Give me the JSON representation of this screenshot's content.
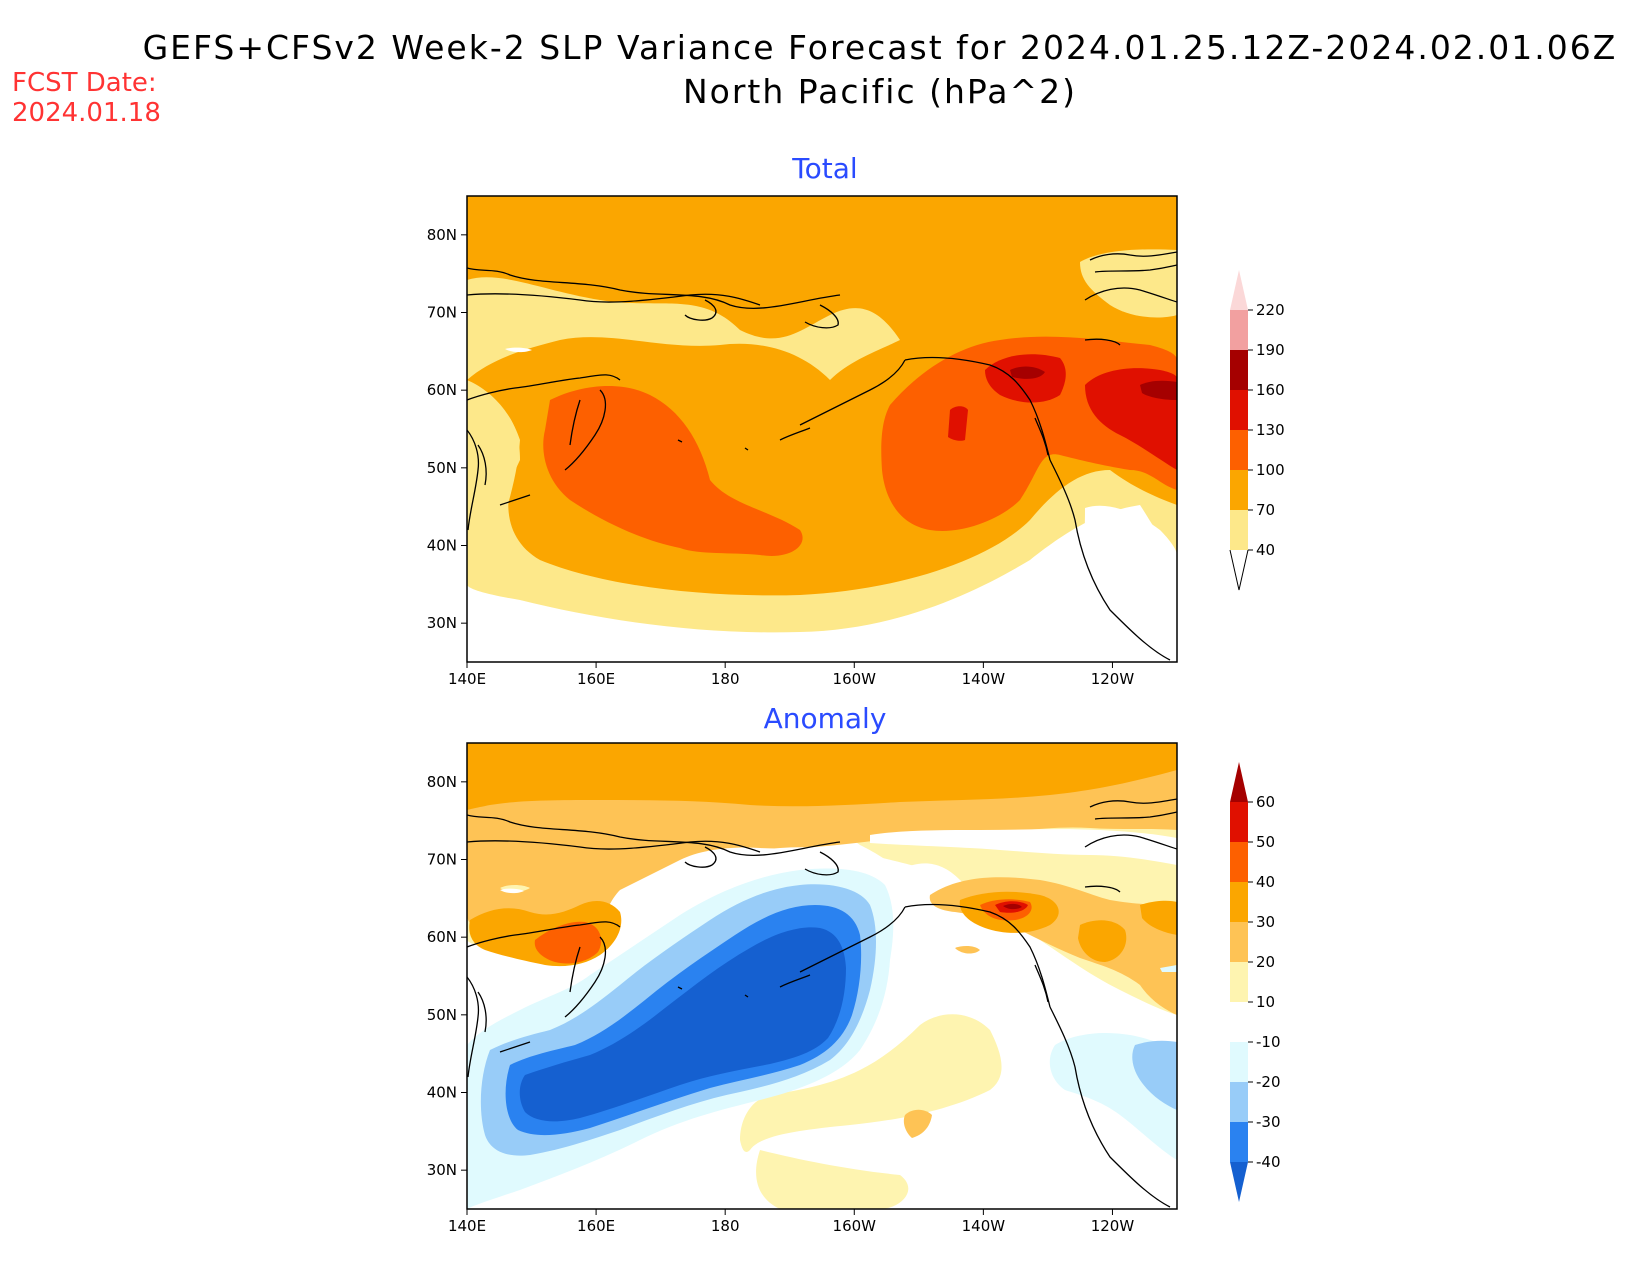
{
  "title": {
    "line1": "GEFS+CFSv2 Week-2 SLP Variance Forecast for 2024.01.25.12Z-2024.02.01.06Z",
    "line2": "North Pacific (hPa^2)"
  },
  "forecast_date": {
    "label": "FCST Date:",
    "value": "2024.01.18"
  },
  "panels": [
    {
      "title": "Total"
    },
    {
      "title": "Anomaly"
    }
  ],
  "map_axes": {
    "lon_labels": [
      "140E",
      "160E",
      "180",
      "160W",
      "140W",
      "120W"
    ],
    "lat_labels": [
      "80N",
      "70N",
      "60N",
      "50N",
      "40N",
      "30N"
    ]
  },
  "chart_data": [
    {
      "type": "heatmap",
      "title": "Total",
      "units": "hPa^2",
      "region": "North Pacific",
      "lon_range": [
        "140E",
        "110W"
      ],
      "lat_range": [
        "25N",
        "85N"
      ],
      "colorbar": {
        "levels": [
          40,
          70,
          100,
          130,
          160,
          190,
          220
        ],
        "level_labels": [
          "40",
          "70",
          "100",
          "130",
          "160",
          "190",
          "220"
        ],
        "colors": [
          "#fde88a",
          "#fba600",
          "#fd6000",
          "#e01000",
          "#a50000",
          "#f2a0a0",
          "#fbd8d8"
        ]
      },
      "features": [
        {
          "name": "max over Sea of Okhotsk / Kamchatka",
          "lon": 160,
          "lat": 52,
          "value_range": "100-130"
        },
        {
          "name": "max over Gulf of Alaska",
          "lon": -145,
          "lat": 52,
          "value_range": "100-130"
        },
        {
          "name": "max over NW Canada",
          "lon": -132,
          "lat": 62,
          "value_range": "160-190"
        }
      ]
    },
    {
      "type": "heatmap",
      "title": "Anomaly",
      "units": "hPa^2",
      "region": "North Pacific",
      "lon_range": [
        "140E",
        "110W"
      ],
      "lat_range": [
        "25N",
        "85N"
      ],
      "colorbar": {
        "levels": [
          -40,
          -30,
          -20,
          -10,
          10,
          20,
          30,
          40,
          50,
          60
        ],
        "level_labels": [
          "-40",
          "-30",
          "-20",
          "-10",
          "10",
          "20",
          "30",
          "40",
          "50",
          "60"
        ],
        "colors": [
          "#1560d0",
          "#2a82f0",
          "#98ccf8",
          "#e0fafe",
          "#ffffff",
          "#fef4b0",
          "#fec355",
          "#fba600",
          "#fd6000",
          "#e01000",
          "#a50000"
        ]
      },
      "features": [
        {
          "name": "negative anomaly over central North Pacific",
          "lon": -175,
          "lat": 47,
          "value_range": "< -40"
        },
        {
          "name": "positive anomaly over NW Canada",
          "lon": -132,
          "lat": 62,
          "value_range": "> 60"
        },
        {
          "name": "positive anomaly over Sea of Okhotsk",
          "lon": 158,
          "lat": 58,
          "value_range": "40-50"
        }
      ]
    }
  ]
}
